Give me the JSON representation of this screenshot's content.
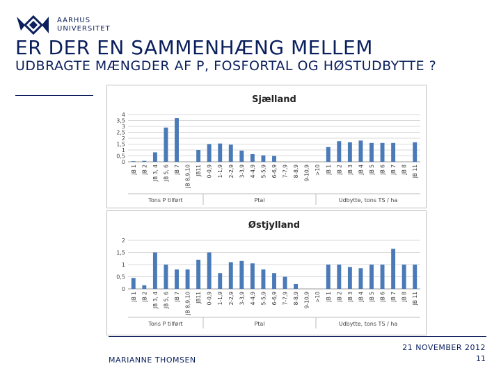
{
  "logo": {
    "line1": "AARHUS",
    "line2": "UNIVERSITET"
  },
  "title": {
    "line1": "ER DER EN SAMMENHÆNG  MELLEM",
    "line2": "UDBRAGTE MÆNGDER  AF P, FOSFORTAL  OG HØSTUDBYTTE ?"
  },
  "footer": {
    "author": "MARIANNE THOMSEN",
    "date": "21 NOVEMBER 2012",
    "page": "11"
  },
  "colors": {
    "bar": "#4a7ab8",
    "grid": "#d9d9d9",
    "text": "#0a1f5c"
  },
  "chart_data": [
    {
      "type": "bar",
      "title": "Sjælland",
      "ylim": [
        0,
        4
      ],
      "yticks": [
        "0",
        "0,5",
        "1",
        "1,5",
        "2",
        "2,5",
        "3",
        "3,5",
        "4"
      ],
      "categories": [
        "JB 1",
        "JB 2",
        "JB 3, 4",
        "JB 5, 6",
        "JB 7",
        "JB 8,9,10",
        "JB11",
        "0-0,9",
        "1-1,9",
        "2-2,9",
        "3-3,9",
        "4-4,9",
        "5-5,9",
        "6-6,9",
        "7-7,9",
        "8-8,9",
        "9-10,9",
        ">10",
        "JB 1",
        "JB 2",
        "JB 3",
        "JB 4",
        "JB 5",
        "JB 6",
        "JB 7",
        "JB 8",
        "JB 11"
      ],
      "values": [
        0.05,
        0.08,
        0.8,
        2.9,
        3.7,
        0,
        1.0,
        1.5,
        1.55,
        1.45,
        0.95,
        0.65,
        0.55,
        0.5,
        0,
        0,
        0,
        0,
        1.25,
        1.75,
        1.65,
        1.8,
        1.6,
        1.6,
        1.6,
        0,
        1.65
      ],
      "groups": [
        "Tons P tilført",
        "Ptal",
        "Udbytte, tons TS / ha"
      ]
    },
    {
      "type": "bar",
      "title": "Østjylland",
      "ylim": [
        0,
        2
      ],
      "yticks": [
        "0",
        "0,5",
        "1",
        "1,5",
        "2"
      ],
      "categories": [
        "JB 1",
        "JB 2",
        "JB 3, 4",
        "JB 5, 6",
        "JB 7",
        "JB 8,9,10",
        "JB11",
        "0-0,9",
        "1-1,9",
        "2-2,9",
        "3-3,9",
        "4-4,9",
        "5-5,9",
        "6-6,9",
        "7-7,9",
        "8-8,9",
        "9-10,9",
        ">10",
        "JB 1",
        "JB 2",
        "JB 3",
        "JB 4",
        "JB 5",
        "JB 6",
        "JB 7",
        "JB 8",
        "JB 11"
      ],
      "values": [
        0.45,
        0.15,
        1.5,
        1.0,
        0.8,
        0.8,
        1.2,
        1.5,
        0.65,
        1.1,
        1.15,
        1.05,
        0.8,
        0.65,
        0.5,
        0.2,
        0,
        0,
        1.0,
        1.0,
        0.9,
        0.85,
        1.0,
        1.0,
        1.65,
        1.0,
        1.0
      ],
      "groups": [
        "Tons P tilført",
        "Ptal",
        "Udbytte, tons TS / ha"
      ]
    }
  ]
}
